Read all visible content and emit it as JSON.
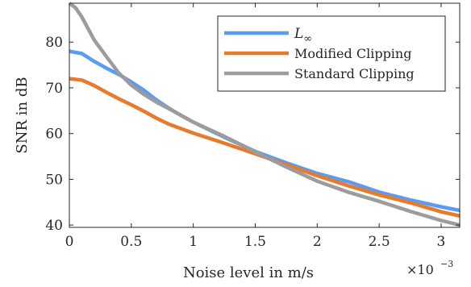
{
  "chart_data": {
    "type": "line",
    "title": "",
    "xlabel": "Noise level in m/s",
    "ylabel": "SNR in dB",
    "x_exponent_base": "×10",
    "x_exponent_power": "−3",
    "xlim": [
      0,
      3.15
    ],
    "ylim": [
      39.5,
      88.5
    ],
    "xticks": [
      0,
      0.5,
      1,
      1.5,
      2,
      2.5,
      3
    ],
    "xtick_labels": [
      "0",
      "0.5",
      "1",
      "1.5",
      "2",
      "2.5",
      "3"
    ],
    "yticks": [
      40,
      50,
      60,
      70,
      80
    ],
    "ytick_labels": [
      "40",
      "50",
      "60",
      "70",
      "80"
    ],
    "grid": false,
    "legend_placement": "top-right",
    "series": [
      {
        "name": "L∞",
        "name_main": "L",
        "name_sub": "∞",
        "color": "#5b9bf0",
        "x": [
          0,
          0.1,
          0.2,
          0.3,
          0.4,
          0.5,
          0.6,
          0.7,
          0.8,
          0.9,
          1.0,
          1.25,
          1.5,
          1.75,
          2.0,
          2.25,
          2.5,
          2.75,
          3.0,
          3.15
        ],
        "y": [
          78.0,
          77.5,
          75.8,
          74.3,
          72.9,
          71.3,
          69.5,
          67.4,
          65.6,
          64.0,
          62.5,
          59.2,
          56.1,
          53.6,
          51.3,
          49.5,
          47.2,
          45.5,
          44.0,
          43.2
        ]
      },
      {
        "name": "Modified Clipping",
        "color": "#e87a2b",
        "x": [
          0,
          0.1,
          0.2,
          0.3,
          0.4,
          0.5,
          0.6,
          0.7,
          0.8,
          0.9,
          1.0,
          1.25,
          1.5,
          1.75,
          2.0,
          2.25,
          2.5,
          2.75,
          3.0,
          3.15
        ],
        "y": [
          72.0,
          71.7,
          70.5,
          69.0,
          67.6,
          66.3,
          64.9,
          63.4,
          62.1,
          61.1,
          60.1,
          57.9,
          55.6,
          53.2,
          50.8,
          48.6,
          46.6,
          44.9,
          42.9,
          42.0
        ]
      },
      {
        "name": "Standard Clipping",
        "color": "#9c9c9c",
        "x": [
          0,
          0.05,
          0.1,
          0.2,
          0.3,
          0.4,
          0.5,
          0.6,
          0.7,
          0.8,
          0.9,
          1.0,
          1.25,
          1.5,
          1.75,
          2.0,
          2.25,
          2.5,
          2.75,
          3.0,
          3.15
        ],
        "y": [
          88.5,
          87.5,
          85.5,
          80.5,
          76.8,
          73.2,
          70.6,
          68.6,
          66.9,
          65.5,
          64.0,
          62.5,
          59.4,
          56.0,
          52.7,
          49.6,
          47.2,
          45.2,
          43.0,
          41.0,
          40.0
        ]
      }
    ]
  }
}
